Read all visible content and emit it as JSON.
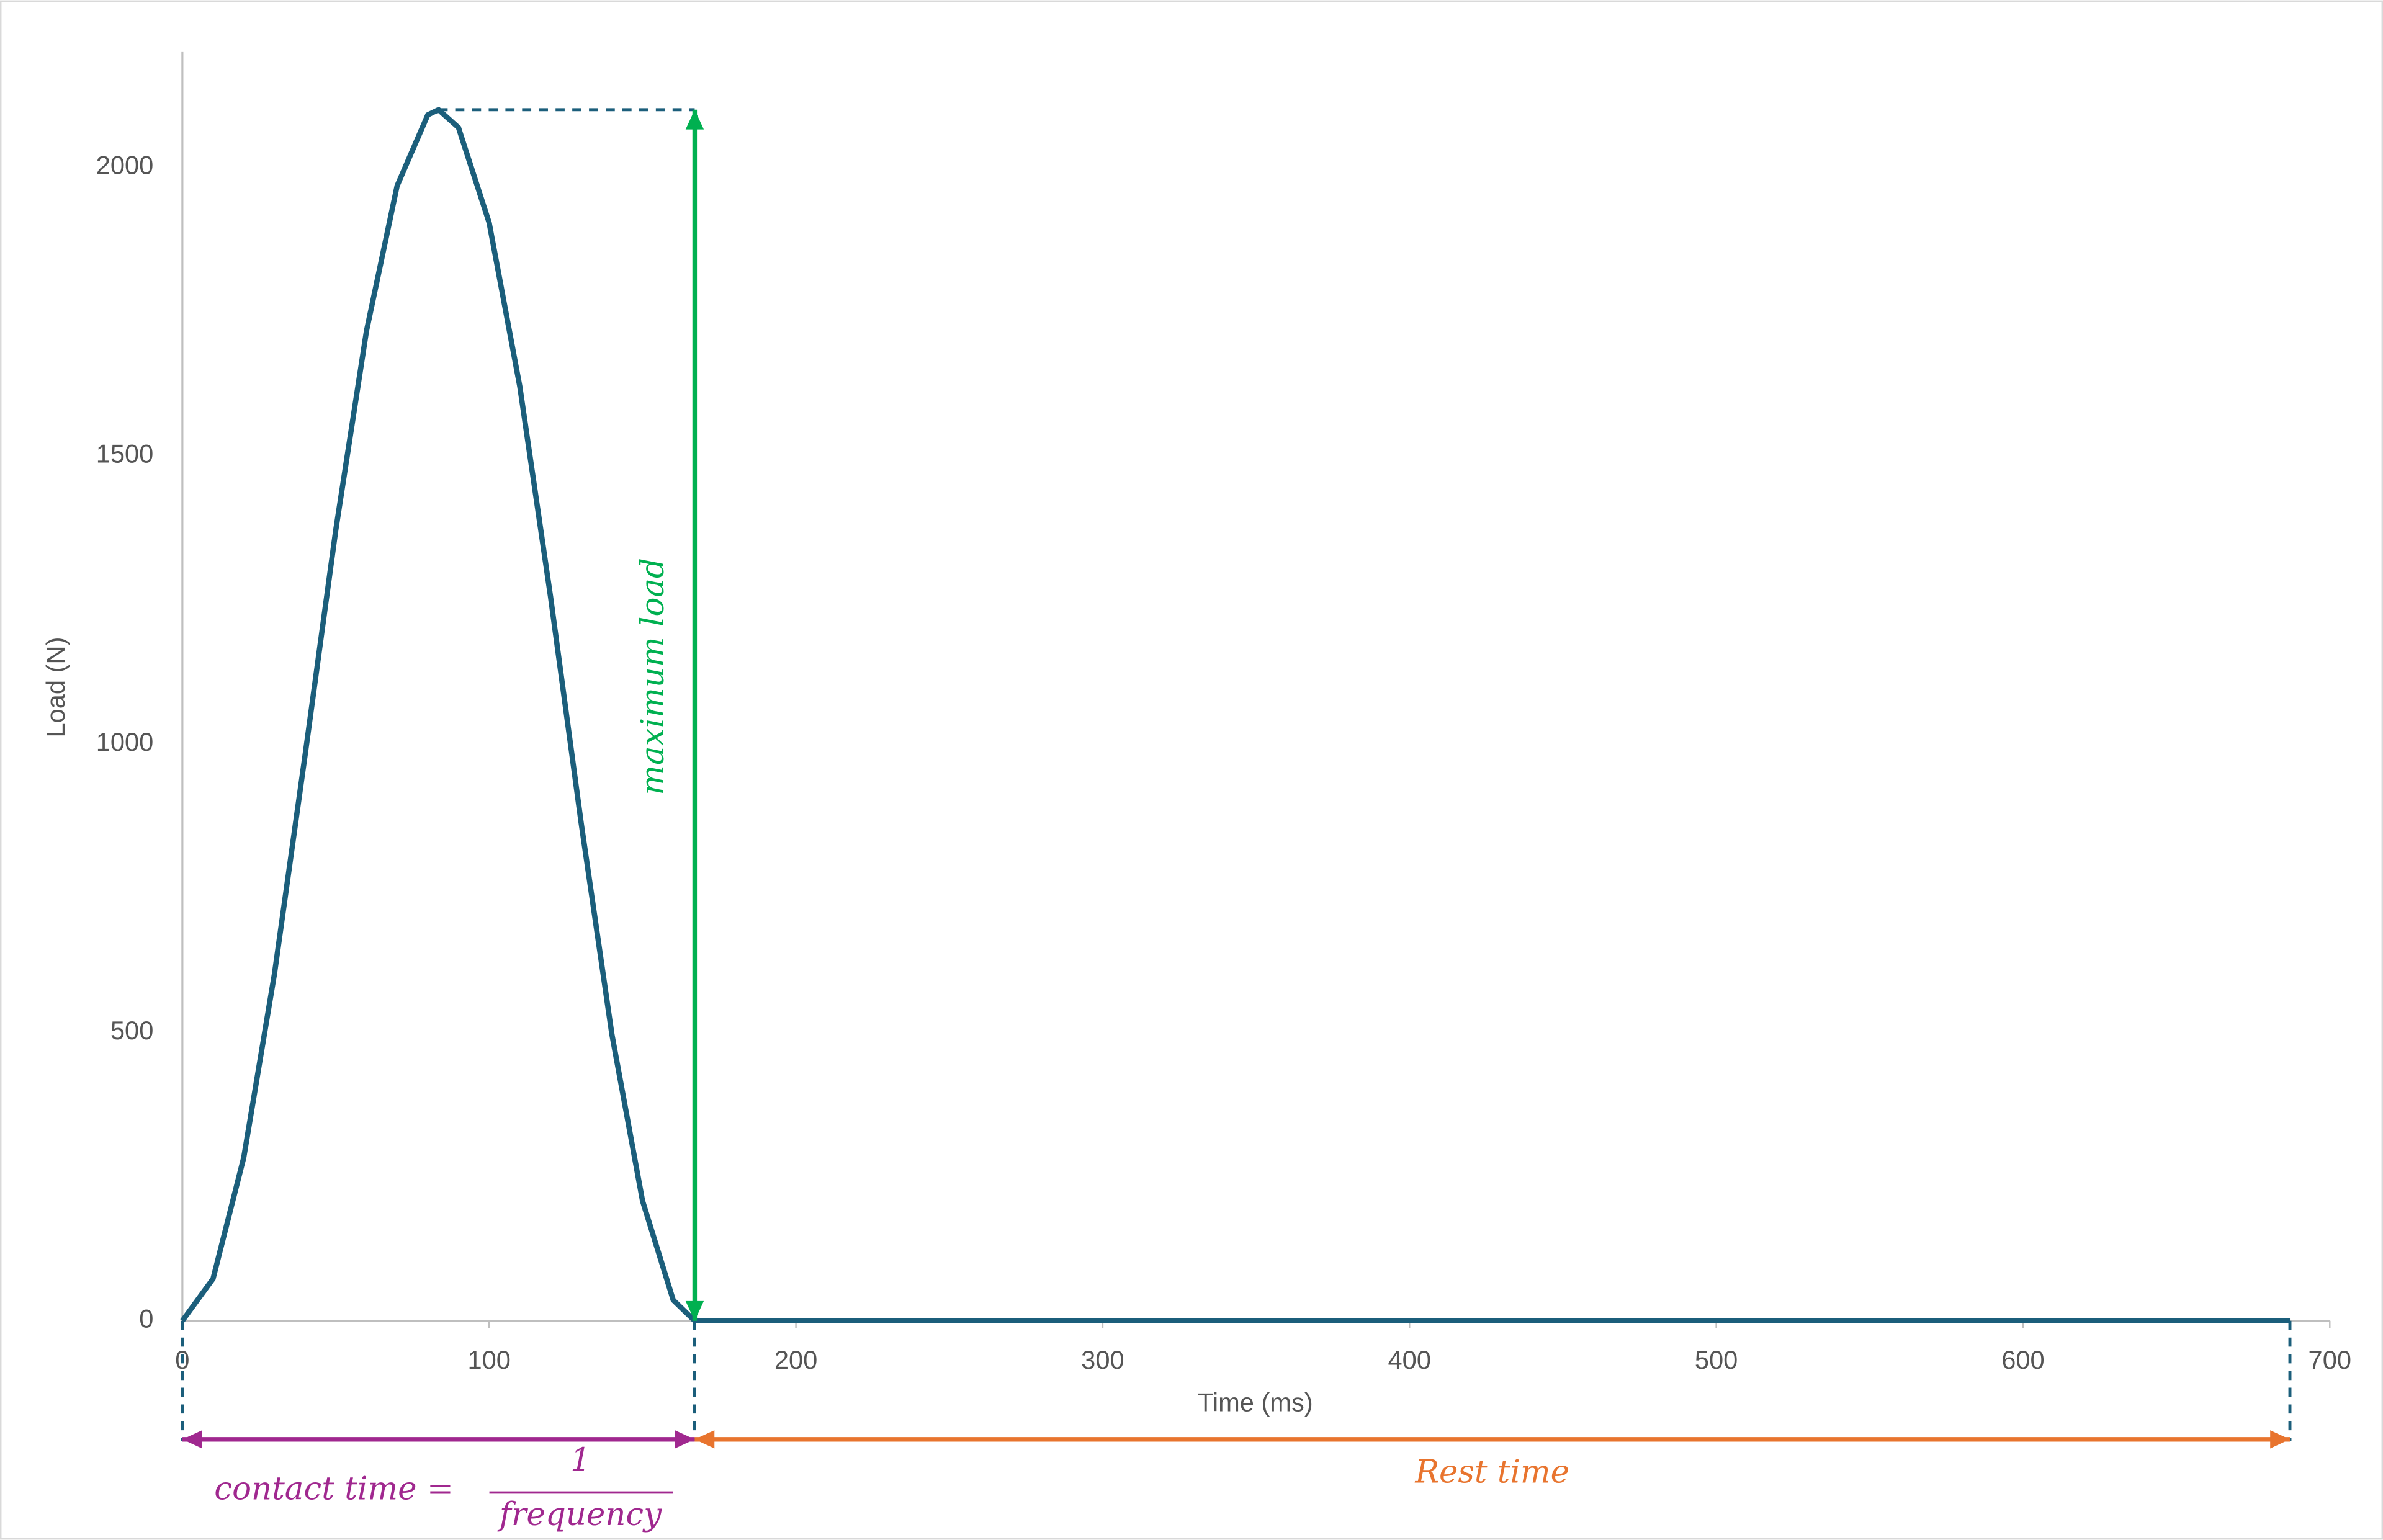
{
  "chart_data": {
    "type": "line",
    "x_label": "Time (ms)",
    "y_label": "Load (N)",
    "x": [
      0,
      10,
      20,
      30,
      40,
      50,
      60,
      70,
      80,
      83.5,
      90,
      100,
      110,
      120,
      130,
      140,
      150,
      160,
      167,
      687
    ],
    "values": [
      0,
      73,
      283,
      601,
      981,
      1371,
      1716,
      1968,
      2091,
      2100,
      2069,
      1904,
      1620,
      1256,
      863,
      497,
      208,
      36,
      0,
      0
    ],
    "color": "#1b5e7b",
    "xlim": [
      0,
      700
    ],
    "xticks": [
      0,
      100,
      200,
      300,
      400,
      500,
      600,
      700
    ],
    "ylim": [
      0,
      2200
    ],
    "yticks": [
      0,
      500,
      1000,
      1500,
      2000
    ],
    "grid": false,
    "annotations": {
      "maximum_load": {
        "text": "maximum load",
        "color": "#00b050"
      },
      "contact_time": {
        "text": "contact time =",
        "numerator": "1",
        "denominator": "frequency",
        "color": "#a0288f"
      },
      "rest_time": {
        "text": "Rest time",
        "color": "#e8742e"
      }
    }
  }
}
